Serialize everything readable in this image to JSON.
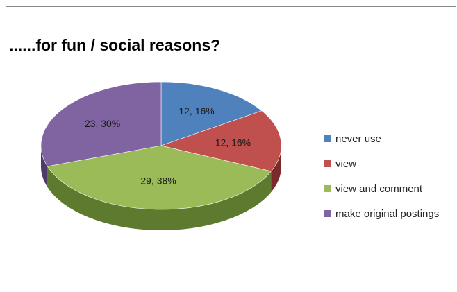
{
  "chart_data": {
    "type": "pie",
    "title": "......for fun / social reasons?",
    "categories": [
      "never use",
      "view",
      "view and comment",
      "make original postings"
    ],
    "values": [
      12,
      12,
      29,
      23
    ],
    "percentages": [
      16,
      16,
      38,
      30
    ],
    "data_labels": [
      "12, 16%",
      "12, 16%",
      "29, 38%",
      "23, 30%"
    ],
    "colors": [
      "#4f81bd",
      "#c0504d",
      "#9bbb59",
      "#8064a2"
    ],
    "side_colors": [
      "#2c4d75",
      "#7a2a28",
      "#5e7a2e",
      "#4e3a6c"
    ],
    "style": "3d",
    "legend_position": "right"
  }
}
